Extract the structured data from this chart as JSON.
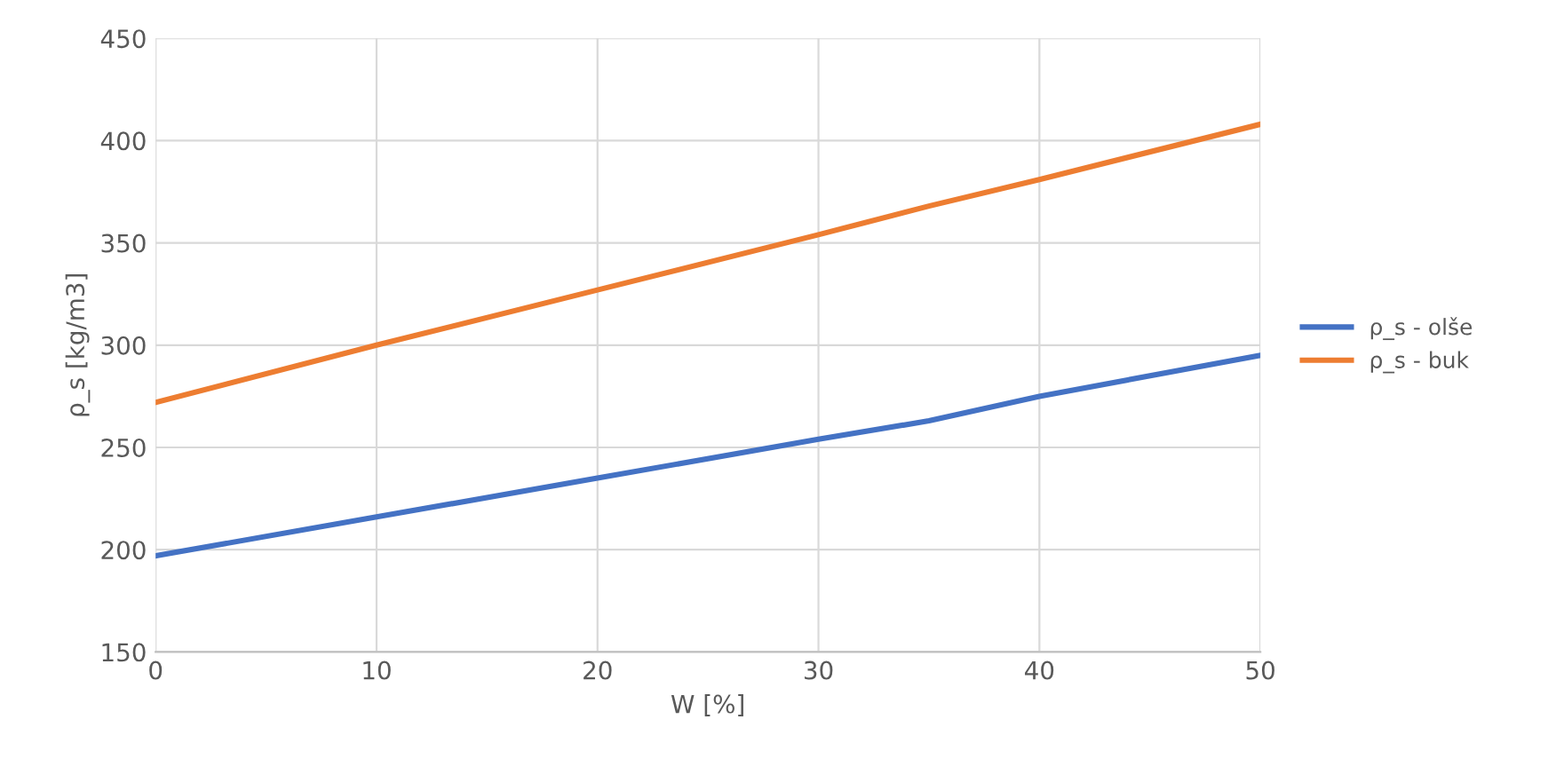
{
  "chart_data": {
    "type": "line",
    "xlabel": "W [%]",
    "ylabel": "ρ_s [kg/m3]",
    "x": [
      0,
      10,
      20,
      30,
      35,
      40,
      50
    ],
    "series": [
      {
        "name": "ρ_s - olše",
        "color": "#4472c4",
        "values": [
          197,
          216,
          235,
          254,
          263,
          275,
          295
        ]
      },
      {
        "name": "ρ_s - buk",
        "color": "#ed7d31",
        "values": [
          272,
          300,
          327,
          354,
          368,
          381,
          408
        ]
      }
    ],
    "xlim": [
      0,
      50
    ],
    "xticks": [
      0,
      10,
      20,
      30,
      40,
      50
    ],
    "ylim": [
      150,
      450
    ],
    "yticks": [
      150,
      200,
      250,
      300,
      350,
      400,
      450
    ],
    "grid": true,
    "legend": "right",
    "marker": "none",
    "line_style": "solid"
  }
}
